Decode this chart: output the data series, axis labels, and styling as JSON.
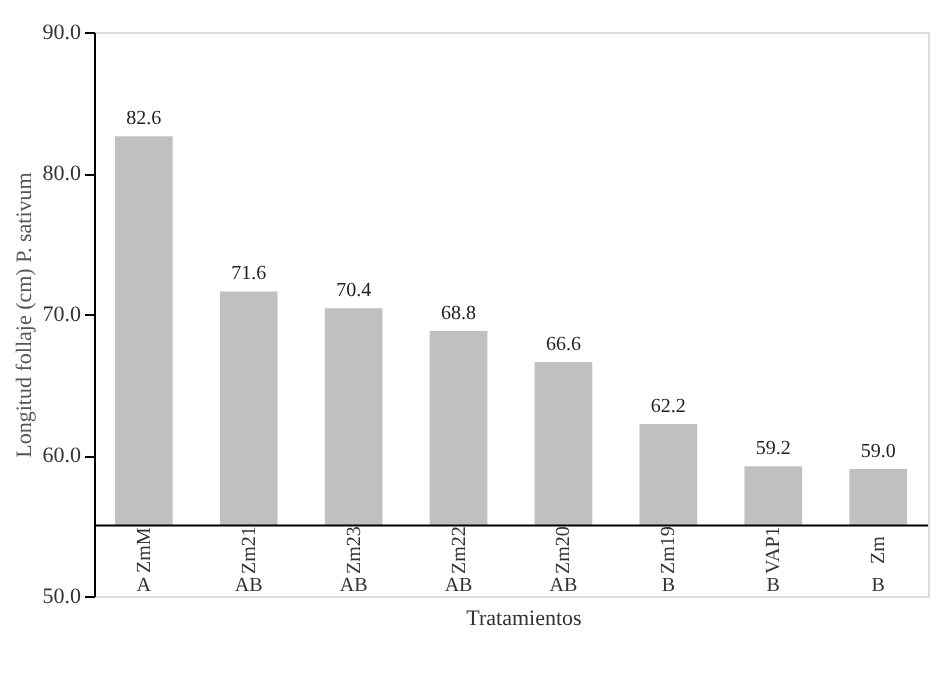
{
  "chart_data": {
    "type": "bar",
    "xlabel": "Tratamientos",
    "ylabel": "Longitud follaje  (cm)  P. sativum",
    "categories": [
      "ZmM",
      "Zm21",
      "Zm23",
      "Zm22",
      "Zm20",
      "Zm19",
      "VAP1",
      "Zm"
    ],
    "base": [
      55,
      55,
      55,
      55,
      55,
      55,
      55,
      55
    ],
    "values": [
      27.6,
      16.6,
      15.4,
      13.8,
      11.6,
      7.2,
      4.2,
      4.0
    ],
    "value_labels": [
      "82.6",
      "71.6",
      "70.4",
      "68.8",
      "66.6",
      "62.2",
      "59.2",
      "59.0"
    ],
    "color": "#c0c0c0",
    "ylim": [
      50,
      90
    ],
    "yticks": [
      {
        "value": 50,
        "label": "50.0"
      },
      {
        "value": 60,
        "label": "60.0"
      },
      {
        "value": 70,
        "label": "70.0"
      },
      {
        "value": 80,
        "label": "80.0"
      },
      {
        "value": 90,
        "label": "90.0"
      }
    ],
    "annotations": [
      "A",
      "AB",
      "AB",
      "AB",
      "AB",
      "B",
      "B",
      "B"
    ],
    "grid": false
  }
}
